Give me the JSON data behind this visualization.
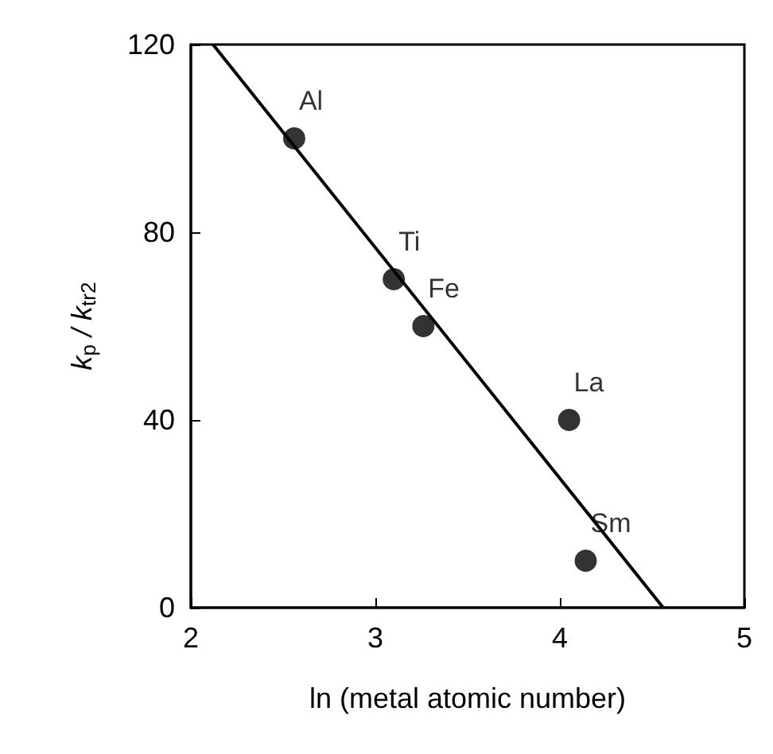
{
  "chart_data": {
    "type": "scatter",
    "xlabel": "ln (metal atomic number)",
    "ylabel": "k$_{p}$ / k$_{tr2}$",
    "xlim": [
      2,
      5
    ],
    "xticks": [
      2,
      3,
      4,
      5
    ],
    "ylim": [
      0,
      120
    ],
    "yticks": [
      0,
      40,
      80,
      120
    ],
    "grid": false,
    "series": [
      {
        "marker": "circle",
        "color": "#000000",
        "x": [
          2.56,
          3.1,
          3.26,
          4.05,
          4.14
        ],
        "values": [
          100,
          70,
          60,
          40,
          10
        ]
      },
      {
        "type": "line",
        "marker": "none",
        "color": "#000000",
        "x": [
          2.12,
          4.56
        ],
        "values": [
          120,
          0
        ]
      }
    ],
    "annotations": [
      {
        "text": "Al",
        "x": 2.56,
        "y": 100
      },
      {
        "text": "Ti",
        "x": 3.1,
        "y": 70
      },
      {
        "text": "Fe",
        "x": 3.26,
        "y": 60
      },
      {
        "text": "La",
        "x": 4.05,
        "y": 40
      },
      {
        "text": "Sm",
        "x": 4.14,
        "y": 10
      }
    ]
  }
}
